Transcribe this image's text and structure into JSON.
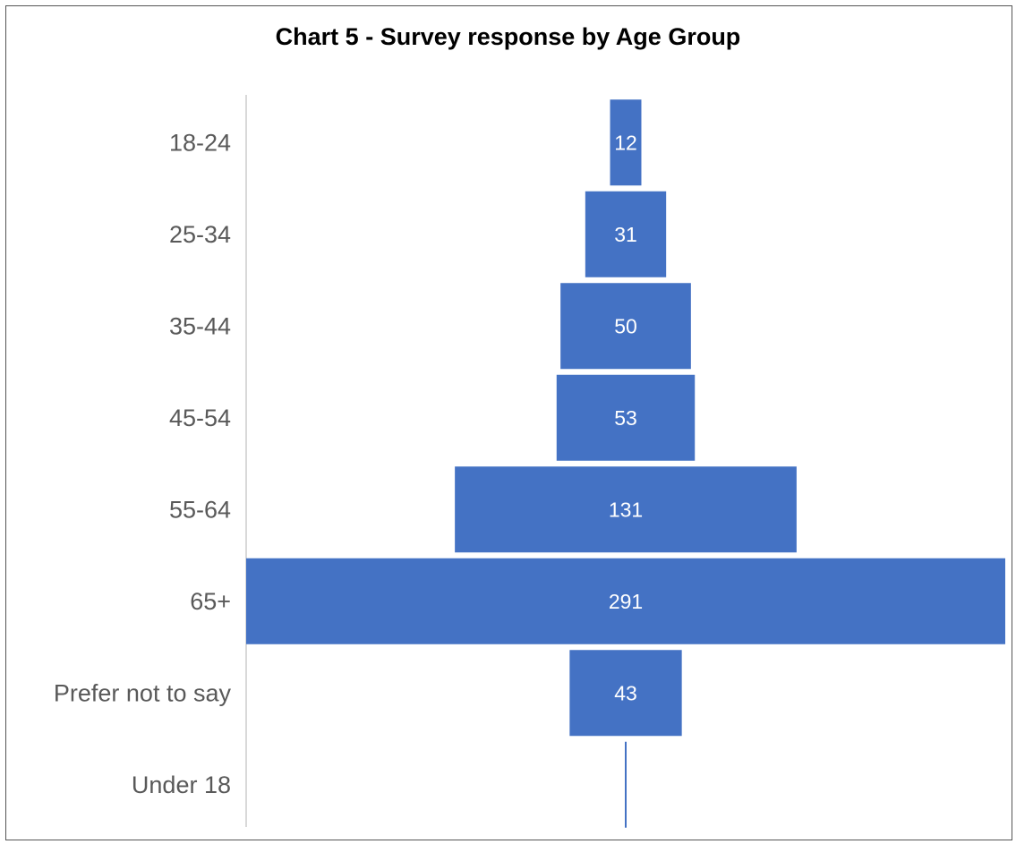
{
  "chart_data": {
    "type": "bar",
    "subtype": "funnel",
    "title": "Chart 5 - Survey response by Age Group",
    "xlabel": "",
    "ylabel": "",
    "categories": [
      "18-24",
      "25-34",
      "35-44",
      "45-54",
      "55-64",
      "65+",
      "Prefer not to say",
      "Under 18"
    ],
    "values": [
      12,
      31,
      50,
      53,
      131,
      291,
      43,
      0
    ],
    "data_labels": [
      "12",
      "31",
      "50",
      "53",
      "131",
      "291",
      "43",
      ""
    ],
    "grid": false,
    "legend": "none",
    "colors": {
      "bar": "#4472C4",
      "bar_label": "#ffffff",
      "category_label": "#595959",
      "axis_line": "#d9d9d9",
      "title": "#000000"
    }
  }
}
